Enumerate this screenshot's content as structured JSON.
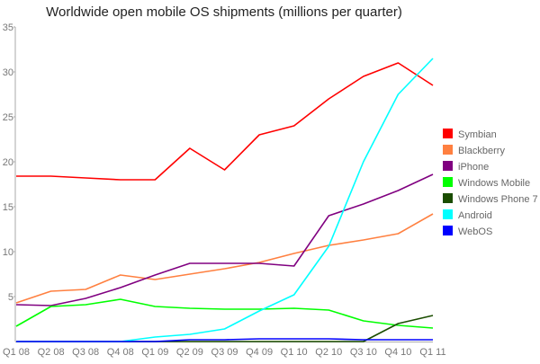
{
  "chart_data": {
    "type": "line",
    "title": "Worldwide open mobile OS shipments (millions per quarter)",
    "xlabel": "",
    "ylabel": "",
    "categories": [
      "Q1 08",
      "Q2 08",
      "Q3 08",
      "Q4 08",
      "Q1 09",
      "Q2 09",
      "Q3 09",
      "Q4 09",
      "Q1 10",
      "Q2 10",
      "Q3 10",
      "Q4 10",
      "Q1 11"
    ],
    "ylim": [
      0,
      35
    ],
    "yticks": [
      5,
      10,
      15,
      20,
      25,
      30,
      35
    ],
    "grid": false,
    "legend": "right",
    "series": [
      {
        "name": "Symbian",
        "color": "#ff0000",
        "values": [
          18.4,
          18.4,
          18.2,
          18.0,
          18.0,
          21.5,
          19.1,
          23.0,
          24.0,
          27.0,
          29.5,
          31.0,
          28.5
        ]
      },
      {
        "name": "Blackberry",
        "color": "#ff8040",
        "values": [
          4.3,
          5.6,
          5.8,
          7.4,
          6.9,
          7.5,
          8.1,
          8.8,
          9.8,
          10.7,
          11.3,
          12.0,
          14.2
        ]
      },
      {
        "name": "iPhone",
        "color": "#800080",
        "values": [
          4.1,
          4.0,
          4.8,
          6.0,
          7.4,
          8.7,
          8.7,
          8.7,
          8.4,
          14.0,
          15.3,
          16.8,
          18.6
        ]
      },
      {
        "name": "Windows Mobile",
        "color": "#00ff00",
        "values": [
          1.7,
          3.9,
          4.1,
          4.7,
          3.9,
          3.7,
          3.6,
          3.6,
          3.7,
          3.5,
          2.3,
          1.8,
          1.5
        ]
      },
      {
        "name": "Windows Phone 7",
        "color": "#1a4d00",
        "values": [
          0,
          0,
          0,
          0,
          0,
          0,
          0,
          0,
          0,
          0,
          0,
          2.0,
          2.9
        ]
      },
      {
        "name": "Android",
        "color": "#00ffff",
        "values": [
          0,
          0,
          0,
          0,
          0.5,
          0.8,
          1.4,
          3.4,
          5.2,
          10.6,
          20.0,
          27.5,
          31.5
        ]
      },
      {
        "name": "WebOS",
        "color": "#0000ff",
        "values": [
          0,
          0,
          0,
          0,
          0,
          0.2,
          0.2,
          0.3,
          0.3,
          0.3,
          0.2,
          0.2,
          0.2
        ]
      }
    ]
  }
}
